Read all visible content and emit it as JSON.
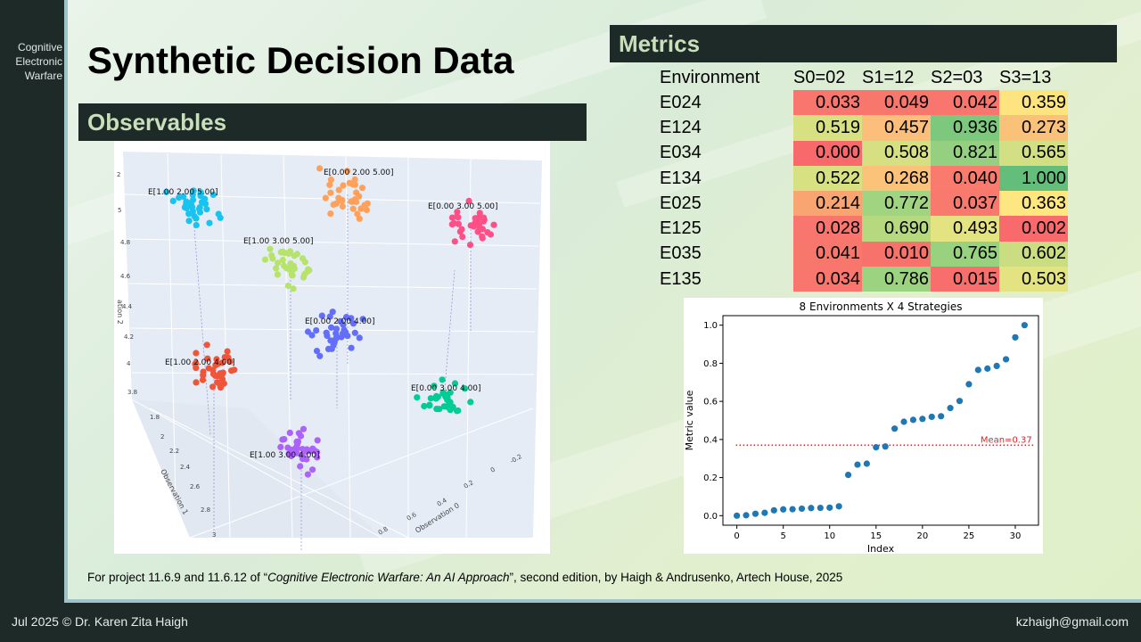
{
  "sidebar": {
    "label_lines": [
      "Cognitive",
      "Electronic",
      "Warfare"
    ]
  },
  "title": "Synthetic Decision Data",
  "observables": {
    "header": "Observables",
    "plot": {
      "axis_labels": {
        "observation0": "Observation 0",
        "observation1": "Observation 1",
        "observation2": "ation 2"
      },
      "z_ticks": [
        "2",
        "5",
        "4.8",
        "4.6",
        "4.4",
        "4.2",
        "4",
        "3.8"
      ],
      "obs1_ticks": [
        "1.8",
        "2",
        "2.2",
        "2.4",
        "2.6",
        "2.8",
        "3"
      ],
      "obs0_ticks": [
        "-0.2",
        "0",
        "0.2",
        "0.4",
        "0.6",
        "0.8"
      ],
      "clusters": [
        {
          "label": "E[1.00 2.00 5.00]",
          "color": "#19c3f0"
        },
        {
          "label": "E[0.00 2.00 5.00]",
          "color": "#ffa15a"
        },
        {
          "label": "E[0.00 3.00 5.00]",
          "color": "#ff4f86"
        },
        {
          "label": "E[1.00 3.00 5.00]",
          "color": "#b6e36b"
        },
        {
          "label": "E[0.00 2.00 4.00]",
          "color": "#636efa"
        },
        {
          "label": "E[1.00 2.00 4.00]",
          "color": "#ef553b"
        },
        {
          "label": "E[0.00 3.00 4.00]",
          "color": "#00cc96"
        },
        {
          "label": "E[1.00 3.00 4.00]",
          "color": "#ab63fa"
        }
      ]
    }
  },
  "metrics": {
    "header": "Metrics",
    "columns": [
      "Environment",
      "S0=02",
      "S1=12",
      "S2=03",
      "S3=13"
    ],
    "rows": [
      {
        "env": "E024",
        "values": [
          "0.033",
          "0.049",
          "0.042",
          "0.359"
        ]
      },
      {
        "env": "E124",
        "values": [
          "0.519",
          "0.457",
          "0.936",
          "0.273"
        ]
      },
      {
        "env": "E034",
        "values": [
          "0.000",
          "0.508",
          "0.821",
          "0.565"
        ]
      },
      {
        "env": "E134",
        "values": [
          "0.522",
          "0.268",
          "0.040",
          "1.000"
        ]
      },
      {
        "env": "E025",
        "values": [
          "0.214",
          "0.772",
          "0.037",
          "0.363"
        ]
      },
      {
        "env": "E125",
        "values": [
          "0.028",
          "0.690",
          "0.493",
          "0.002"
        ]
      },
      {
        "env": "E035",
        "values": [
          "0.041",
          "0.010",
          "0.765",
          "0.602"
        ]
      },
      {
        "env": "E135",
        "values": [
          "0.034",
          "0.786",
          "0.015",
          "0.503"
        ]
      }
    ],
    "cell_colors": [
      [
        "#f8766d",
        "#f8776d",
        "#f8766d",
        "#fde47f"
      ],
      [
        "#d7e182",
        "#fbbf7b",
        "#7cc97d",
        "#fac178"
      ],
      [
        "#f8696b",
        "#d6e082",
        "#94d07f",
        "#d2df82"
      ],
      [
        "#d7e182",
        "#fbc27a",
        "#f87b6e",
        "#63be7b"
      ],
      [
        "#f9a572",
        "#a0d480",
        "#f87a6e",
        "#fee681"
      ],
      [
        "#f8766d",
        "#b6d980",
        "#e4e382",
        "#f86a6b"
      ],
      [
        "#f8776d",
        "#f8726c",
        "#98d27f",
        "#cadd81"
      ],
      [
        "#f8766d",
        "#9cd380",
        "#f86e6c",
        "#e3e382"
      ]
    ]
  },
  "chart_data": {
    "type": "scatter",
    "title": "8 Environments X 4 Strategies",
    "xlabel": "Index",
    "ylabel": "Metric value",
    "xlim": [
      -1.5,
      32.5
    ],
    "ylim": [
      -0.05,
      1.05
    ],
    "xticks": [
      0,
      5,
      10,
      15,
      20,
      25,
      30
    ],
    "yticks": [
      0.0,
      0.2,
      0.4,
      0.6,
      0.8,
      1.0
    ],
    "x": [
      0,
      1,
      2,
      3,
      4,
      5,
      6,
      7,
      8,
      9,
      10,
      11,
      12,
      13,
      14,
      15,
      16,
      17,
      18,
      19,
      20,
      21,
      22,
      23,
      24,
      25,
      26,
      27,
      28,
      29,
      30,
      31
    ],
    "y": [
      0.0,
      0.002,
      0.01,
      0.015,
      0.028,
      0.033,
      0.034,
      0.037,
      0.04,
      0.041,
      0.042,
      0.049,
      0.214,
      0.268,
      0.273,
      0.359,
      0.363,
      0.457,
      0.493,
      0.503,
      0.508,
      0.519,
      0.522,
      0.565,
      0.602,
      0.69,
      0.765,
      0.772,
      0.786,
      0.821,
      0.936,
      1.0
    ],
    "point_color": "#1f77b4",
    "mean": {
      "value": 0.37,
      "label": "Mean=0.37",
      "color": "#d62728"
    }
  },
  "citation": {
    "prefix": "For project 11.6.9 and 11.6.12 of “",
    "book_title": "Cognitive Electronic Warfare: An AI Approach",
    "suffix": "”, second edition, by Haigh & Andrusenko, Artech House, 2025"
  },
  "footer": {
    "date": "Jul 2025",
    "copyright": "© Dr. Karen Zita Haigh",
    "email": "kzhaigh@gmail.com"
  }
}
